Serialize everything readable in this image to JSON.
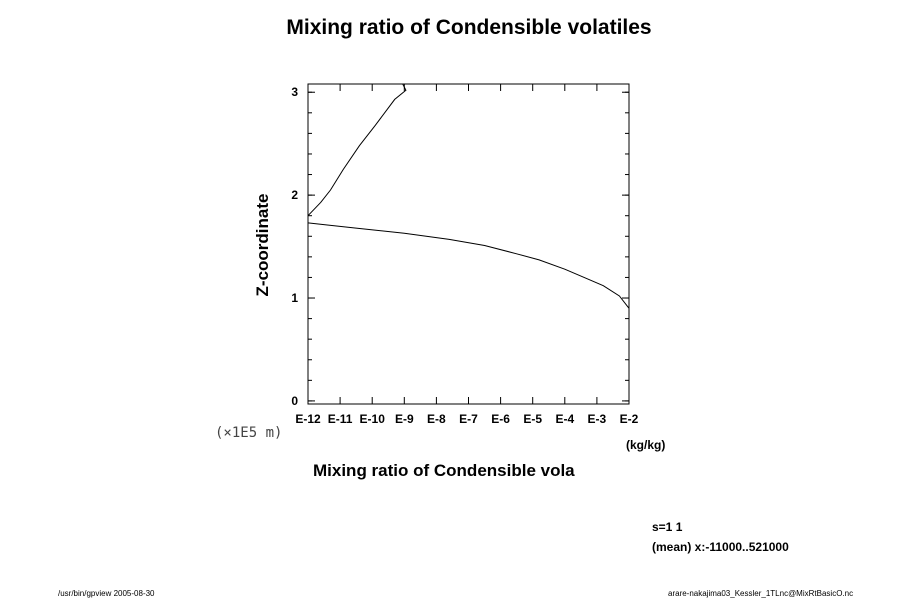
{
  "chart_data": {
    "type": "line",
    "title": "Mixing ratio of Condensible volatiles",
    "xlabel": "Mixing ratio of Condensible vola",
    "xunit": "(kg/kg)",
    "ylabel": "Z-coordinate",
    "yscale_note": "(×1E5 m)",
    "xscale": "log",
    "xlim": [
      -12,
      -2
    ],
    "ylim": [
      -0.03,
      3.08
    ],
    "x_ticks": [
      {
        "value": -12,
        "label": "E-12"
      },
      {
        "value": -11,
        "label": "E-11"
      },
      {
        "value": -10,
        "label": "E-10"
      },
      {
        "value": -9,
        "label": "E-9"
      },
      {
        "value": -8,
        "label": "E-8"
      },
      {
        "value": -7,
        "label": "E-7"
      },
      {
        "value": -6,
        "label": "E-6"
      },
      {
        "value": -5,
        "label": "E-5"
      },
      {
        "value": -4,
        "label": "E-4"
      },
      {
        "value": -3,
        "label": "E-3"
      },
      {
        "value": -2,
        "label": "E-2"
      }
    ],
    "y_ticks": [
      {
        "value": 0,
        "label": "0"
      },
      {
        "value": 1,
        "label": "1"
      },
      {
        "value": 2,
        "label": "2"
      },
      {
        "value": 3,
        "label": "3"
      }
    ],
    "y_minor_step": 0.2,
    "grid": false,
    "series": [
      {
        "log10_x": [
          -2.0,
          -2.3,
          -2.8,
          -3.4,
          -4.0,
          -4.8,
          -5.5,
          -6.5,
          -7.6,
          -9.0,
          -10.5,
          -11.4,
          -12.0
        ],
        "y": [
          0.9,
          1.02,
          1.12,
          1.2,
          1.28,
          1.37,
          1.43,
          1.51,
          1.57,
          1.63,
          1.68,
          1.71,
          1.73
        ]
      },
      {
        "log10_x": [
          -12.0,
          -11.6,
          -11.3,
          -10.9,
          -10.4,
          -9.9,
          -9.3,
          -8.95,
          -9.05
        ],
        "y": [
          1.8,
          1.93,
          2.05,
          2.25,
          2.48,
          2.68,
          2.93,
          3.02,
          3.08
        ]
      }
    ]
  },
  "info": {
    "line1": "s=1 1",
    "line2": "(mean) x:-11000..521000"
  },
  "footer": {
    "left": "/usr/bin/gpview 2005-08-30",
    "right": "arare-nakajima03_Kessler_1TLnc@MixRtBasicO.nc"
  }
}
